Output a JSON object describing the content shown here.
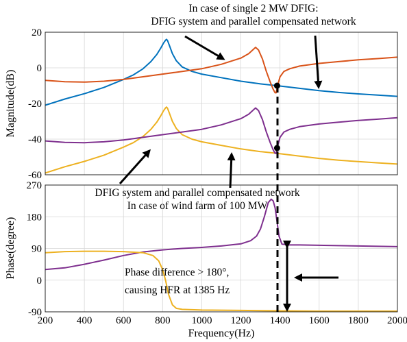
{
  "figure": {
    "annotations": {
      "top_line1": "In case of single 2 MW DFIG:",
      "top_line2": "DFIG system and parallel compensated network",
      "mid_line1": "DFIG system and parallel compensated network",
      "mid_line2": "In case of wind farm of 100 MW",
      "phase_line1": "Phase difference > 180°,",
      "phase_line2": "causing HFR at 1385 Hz"
    }
  },
  "chart_data": [
    {
      "type": "line",
      "panel": "magnitude",
      "xlabel": "",
      "ylabel": "Magnitude(dB)",
      "xlim": [
        200,
        2000
      ],
      "ylim": [
        -60,
        20
      ],
      "x_ticks": [
        200,
        400,
        600,
        800,
        1000,
        1200,
        1400,
        1600,
        1800,
        2000
      ],
      "y_ticks": [
        20,
        0,
        -20,
        -40,
        -60
      ],
      "grid": true,
      "series": [
        {
          "color": "#0072BD",
          "x": [
            200,
            300,
            400,
            500,
            600,
            650,
            700,
            740,
            770,
            790,
            805,
            815,
            820,
            825,
            835,
            850,
            870,
            900,
            950,
            1000,
            1100,
            1200,
            1300,
            1385,
            1500,
            1600,
            1700,
            1800,
            1900,
            2000
          ],
          "y": [
            -21,
            -17.5,
            -14.5,
            -11,
            -6.5,
            -4,
            -0.5,
            3.5,
            7.5,
            11,
            14,
            15.5,
            16,
            15.3,
            12.5,
            8,
            4,
            0.5,
            -2,
            -3.5,
            -5.5,
            -7.5,
            -9,
            -10,
            -11.5,
            -12.8,
            -13.8,
            -14.6,
            -15.3,
            -16
          ]
        },
        {
          "color": "#D95319",
          "x": [
            200,
            300,
            400,
            500,
            600,
            700,
            800,
            900,
            1000,
            1100,
            1200,
            1240,
            1260,
            1275,
            1290,
            1310,
            1330,
            1350,
            1365,
            1375,
            1380,
            1390,
            1400,
            1420,
            1450,
            1500,
            1600,
            1700,
            1800,
            1900,
            2000
          ],
          "y": [
            -7,
            -7.8,
            -8,
            -7.5,
            -6.5,
            -5,
            -3.5,
            -2,
            -0.5,
            2,
            5.5,
            8,
            10,
            11.5,
            10,
            5,
            -2,
            -8,
            -12,
            -14,
            -14,
            -9,
            -5,
            -2,
            -0.5,
            1,
            2.5,
            3.5,
            4.5,
            5.2,
            6
          ]
        },
        {
          "color": "#EDB120",
          "x": [
            200,
            300,
            400,
            500,
            600,
            650,
            700,
            740,
            770,
            790,
            805,
            815,
            820,
            825,
            835,
            850,
            870,
            900,
            950,
            1000,
            1100,
            1200,
            1300,
            1385,
            1500,
            1600,
            1700,
            1800,
            1900,
            2000
          ],
          "y": [
            -59,
            -55.5,
            -52.5,
            -49,
            -44.5,
            -42,
            -38.5,
            -34.5,
            -30.5,
            -27,
            -24,
            -22.5,
            -22,
            -22.7,
            -25.5,
            -30,
            -34,
            -37.5,
            -40,
            -41.5,
            -43.5,
            -45.5,
            -47,
            -48,
            -49.5,
            -50.8,
            -51.8,
            -52.6,
            -53.3,
            -54
          ]
        },
        {
          "color": "#7E2F8E",
          "x": [
            200,
            300,
            400,
            500,
            600,
            700,
            800,
            900,
            1000,
            1100,
            1200,
            1240,
            1260,
            1275,
            1290,
            1310,
            1330,
            1350,
            1365,
            1375,
            1380,
            1390,
            1400,
            1420,
            1450,
            1500,
            1600,
            1700,
            1800,
            1900,
            2000
          ],
          "y": [
            -41,
            -41.8,
            -42,
            -41.5,
            -40.5,
            -39,
            -37.5,
            -36,
            -34.5,
            -32,
            -28.5,
            -26,
            -24,
            -22.5,
            -24,
            -29,
            -36,
            -42,
            -46,
            -48,
            -48,
            -43,
            -39,
            -36,
            -34.5,
            -33,
            -31.5,
            -30.5,
            -29.5,
            -28.8,
            -28
          ]
        }
      ],
      "markers": [
        {
          "x": 1385,
          "y": -10
        },
        {
          "x": 1385,
          "y": -45
        }
      ]
    },
    {
      "type": "line",
      "panel": "phase",
      "xlabel": "Frequency(Hz)",
      "ylabel": "Phase(degree)",
      "xlim": [
        200,
        2000
      ],
      "ylim": [
        -90,
        270
      ],
      "x_ticks": [
        200,
        400,
        600,
        800,
        1000,
        1200,
        1400,
        1600,
        1800,
        2000
      ],
      "y_ticks": [
        270,
        180,
        90,
        0,
        -90
      ],
      "grid": true,
      "series": [
        {
          "color": "#7E2F8E",
          "x": [
            200,
            300,
            400,
            500,
            600,
            700,
            800,
            900,
            1000,
            1100,
            1200,
            1250,
            1280,
            1300,
            1320,
            1340,
            1355,
            1365,
            1375,
            1385,
            1395,
            1410,
            1450,
            1500,
            1600,
            1700,
            1800,
            1900,
            2000
          ],
          "y": [
            30,
            35,
            45,
            57,
            70,
            80,
            86,
            90,
            93,
            97,
            103,
            112,
            125,
            145,
            180,
            220,
            230,
            225,
            205,
            165,
            125,
            102,
            100,
            100,
            99,
            98,
            97,
            96,
            95
          ]
        },
        {
          "color": "#EDB120",
          "x": [
            200,
            300,
            400,
            500,
            600,
            700,
            750,
            780,
            800,
            815,
            830,
            850,
            870,
            900,
            1000,
            1200,
            1400,
            1600,
            1800,
            2000
          ],
          "y": [
            78,
            81,
            82,
            82,
            81,
            78,
            70,
            55,
            30,
            0,
            -40,
            -70,
            -80,
            -83,
            -85,
            -86,
            -87,
            -88,
            -88,
            -88
          ]
        }
      ]
    }
  ]
}
